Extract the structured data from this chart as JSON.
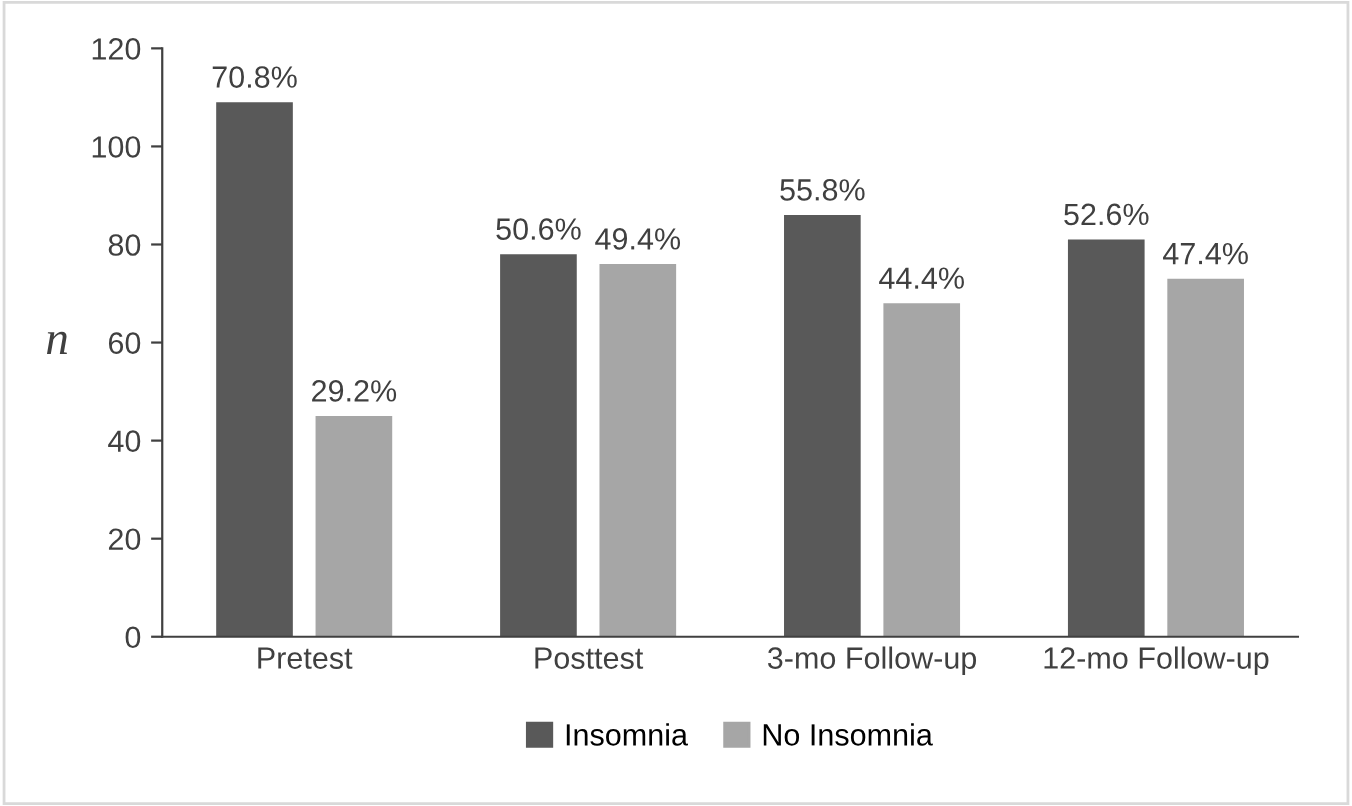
{
  "chart_data": {
    "type": "bar",
    "ylabel": "n",
    "categories": [
      "Pretest",
      "Posttest",
      "3-mo Follow-up",
      "12-mo Follow-up"
    ],
    "series": [
      {
        "name": "Insomnia",
        "color": "#595959",
        "values": [
          109,
          78,
          86,
          81
        ]
      },
      {
        "name": "No Insomnia",
        "color": "#a6a6a6",
        "values": [
          45,
          76,
          68,
          73
        ]
      }
    ],
    "annotations": [
      "70.8%",
      "29.2%",
      "50.6%",
      "49.4%",
      "55.8%",
      "44.4%",
      "52.6%",
      "47.4%"
    ],
    "ylim": [
      0,
      120
    ],
    "yticks": [
      0,
      20,
      40,
      60,
      80,
      100,
      120
    ],
    "grid": false,
    "legend": "bottom"
  }
}
